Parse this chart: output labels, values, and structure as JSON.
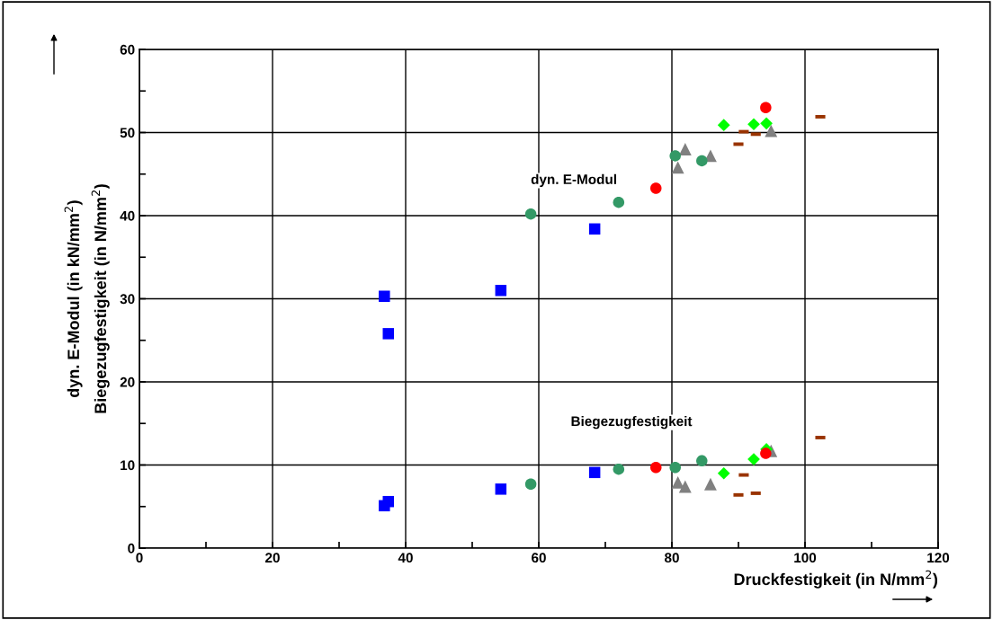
{
  "chart_data": {
    "type": "scatter",
    "xlabel": "Druckfestigkeit (in N/mm$^{2}$)",
    "ylabel": "dyn. E-Modul (in kN/mm$^{2}$)\nBiegezugfestigkeit (in N/mm$^{2}$)",
    "xlim": [
      0,
      120
    ],
    "ylim": [
      0,
      60
    ],
    "xticks": [
      0,
      {
        "value": 10,
        "label": null
      },
      20,
      {
        "value": 30,
        "label": null
      },
      40,
      {
        "value": 50,
        "label": null
      },
      60,
      {
        "value": 70,
        "label": null
      },
      80,
      {
        "value": 90,
        "label": null
      },
      100,
      {
        "value": 110,
        "label": null
      },
      120
    ],
    "yticks": [
      0,
      {
        "value": 5,
        "label": null
      },
      10,
      {
        "value": 15,
        "label": null
      },
      20,
      {
        "value": 25,
        "label": null
      },
      30,
      {
        "value": 35,
        "label": null
      },
      40,
      {
        "value": 45,
        "label": null
      },
      50,
      {
        "value": 55,
        "label": null
      },
      60
    ],
    "grid": true,
    "annotations": [
      "dyn. E-Modul",
      "Biegezugfestigkeit"
    ],
    "series": [
      {
        "color": "#0000ff",
        "marker": "square",
        "x": [
          36.8,
          37.4,
          54.3,
          68.4,
          36.8,
          37.4,
          54.3,
          68.4
        ],
        "values": [
          30.3,
          25.8,
          31.0,
          38.4,
          5.1,
          5.6,
          7.1,
          9.1
        ]
      },
      {
        "color": "#339966",
        "marker": "circle",
        "x": [
          58.8,
          72.0,
          80.5,
          84.5,
          58.8,
          72.0,
          80.5,
          84.5
        ],
        "values": [
          40.2,
          41.6,
          47.2,
          46.6,
          7.7,
          9.5,
          9.7,
          10.5
        ]
      },
      {
        "color": "#ff0000",
        "marker": "circle",
        "x": [
          77.6,
          94.1,
          77.6,
          94.1
        ],
        "values": [
          43.3,
          53.0,
          9.7,
          11.4
        ]
      },
      {
        "color": "#808080",
        "marker": "triangle",
        "x": [
          80.9,
          82.0,
          85.8,
          94.9,
          80.9,
          82.0,
          85.8,
          94.9
        ],
        "values": [
          45.8,
          48.0,
          47.2,
          50.2,
          7.9,
          7.4,
          7.7,
          11.7
        ]
      },
      {
        "color": "#00ff00",
        "marker": "diamond",
        "x": [
          87.8,
          92.3,
          94.2,
          87.8,
          92.3,
          94.2
        ],
        "values": [
          50.9,
          51.0,
          51.1,
          9.0,
          10.7,
          11.9
        ]
      },
      {
        "color": "#993300",
        "x": [
          90.0,
          90.8,
          92.6,
          102.3,
          90.0,
          90.8,
          92.6,
          102.3
        ],
        "values": [
          48.6,
          50.1,
          49.8,
          51.9,
          6.4,
          8.8,
          6.6,
          13.3
        ]
      }
    ]
  }
}
